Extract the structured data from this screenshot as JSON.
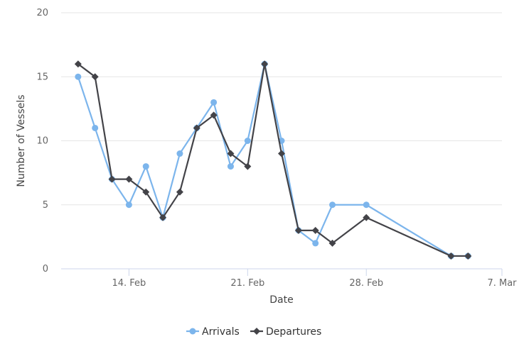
{
  "chart_data": {
    "type": "line",
    "title": "",
    "xlabel": "Date",
    "ylabel": "Number of Vessels",
    "ylim": [
      0,
      20
    ],
    "xlim": [
      "2024-02-10",
      "2024-03-07"
    ],
    "yticks": [
      "0",
      "5",
      "10",
      "15",
      "20"
    ],
    "xticks": [
      {
        "date": "2024-02-14",
        "label": "14. Feb"
      },
      {
        "date": "2024-02-21",
        "label": "21. Feb"
      },
      {
        "date": "2024-02-28",
        "label": "28. Feb"
      },
      {
        "date": "2024-03-07",
        "label": "7. Mar"
      }
    ],
    "grid": "horizontal",
    "legend_position": "bottom-center",
    "series": [
      {
        "name": "Arrivals",
        "color": "#7cb5ec",
        "marker": "circle",
        "points": [
          {
            "x": "2024-02-11",
            "y": 15
          },
          {
            "x": "2024-02-12",
            "y": 11
          },
          {
            "x": "2024-02-13",
            "y": 7
          },
          {
            "x": "2024-02-14",
            "y": 5
          },
          {
            "x": "2024-02-15",
            "y": 8
          },
          {
            "x": "2024-02-16",
            "y": 4
          },
          {
            "x": "2024-02-17",
            "y": 9
          },
          {
            "x": "2024-02-18",
            "y": 11
          },
          {
            "x": "2024-02-19",
            "y": 13
          },
          {
            "x": "2024-02-20",
            "y": 8
          },
          {
            "x": "2024-02-21",
            "y": 10
          },
          {
            "x": "2024-02-22",
            "y": 16
          },
          {
            "x": "2024-02-23",
            "y": 10
          },
          {
            "x": "2024-02-24",
            "y": 3
          },
          {
            "x": "2024-02-25",
            "y": 2
          },
          {
            "x": "2024-02-26",
            "y": 5
          },
          {
            "x": "2024-02-28",
            "y": 5
          },
          {
            "x": "2024-03-04",
            "y": 1
          },
          {
            "x": "2024-03-05",
            "y": 1
          }
        ]
      },
      {
        "name": "Departures",
        "color": "#434348",
        "marker": "diamond",
        "points": [
          {
            "x": "2024-02-11",
            "y": 16
          },
          {
            "x": "2024-02-12",
            "y": 15
          },
          {
            "x": "2024-02-13",
            "y": 7
          },
          {
            "x": "2024-02-14",
            "y": 7
          },
          {
            "x": "2024-02-15",
            "y": 6
          },
          {
            "x": "2024-02-16",
            "y": 4
          },
          {
            "x": "2024-02-17",
            "y": 6
          },
          {
            "x": "2024-02-18",
            "y": 11
          },
          {
            "x": "2024-02-19",
            "y": 12
          },
          {
            "x": "2024-02-20",
            "y": 9
          },
          {
            "x": "2024-02-21",
            "y": 8
          },
          {
            "x": "2024-02-22",
            "y": 16
          },
          {
            "x": "2024-02-23",
            "y": 9
          },
          {
            "x": "2024-02-24",
            "y": 3
          },
          {
            "x": "2024-02-25",
            "y": 3
          },
          {
            "x": "2024-02-26",
            "y": 2
          },
          {
            "x": "2024-02-28",
            "y": 4
          },
          {
            "x": "2024-03-04",
            "y": 1
          },
          {
            "x": "2024-03-05",
            "y": 1
          }
        ]
      }
    ]
  }
}
